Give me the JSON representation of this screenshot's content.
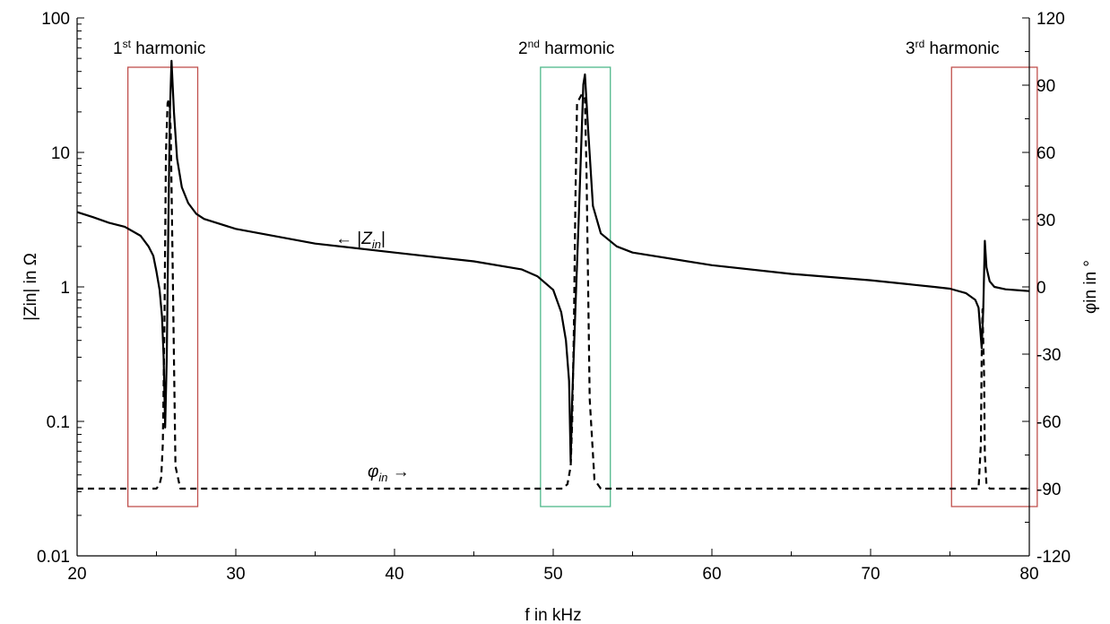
{
  "chart_data": {
    "type": "line",
    "xlabel": "f in kHz",
    "ylabel_left": "|Zin| in Ω",
    "ylabel_right": "φin in °",
    "x_range": [
      20,
      80
    ],
    "y_left_range": [
      0.01,
      100
    ],
    "y_left_scale": "log",
    "y_right_range": [
      -120,
      120
    ],
    "x_ticks": [
      "20",
      "30",
      "40",
      "50",
      "60",
      "70",
      "80"
    ],
    "y_left_ticks": [
      "0.01",
      "0.1",
      "1",
      "10",
      "100"
    ],
    "y_right_ticks": [
      "-120",
      "-90",
      "-60",
      "-30",
      "0",
      "30",
      "60",
      "90",
      "120"
    ],
    "grid": false,
    "series": [
      {
        "name": "|Zin|",
        "axis": "left",
        "style": "solid",
        "color": "#000000",
        "x": [
          20,
          21,
          22,
          23,
          24,
          24.5,
          24.8,
          25.0,
          25.2,
          25.35,
          25.45,
          25.55,
          25.65,
          25.75,
          25.85,
          25.95,
          26.1,
          26.3,
          26.6,
          27.0,
          27.5,
          28,
          30,
          35,
          40,
          45,
          48,
          49,
          50,
          50.5,
          50.8,
          51.0,
          51.1,
          51.2,
          51.4,
          51.6,
          51.75,
          51.9,
          52.0,
          52.2,
          52.5,
          53,
          54,
          55,
          60,
          65,
          70,
          74,
          75,
          76,
          76.6,
          76.8,
          76.9,
          77.0,
          77.1,
          77.2,
          77.3,
          77.5,
          77.8,
          78.5,
          80
        ],
        "y": [
          3.6,
          3.3,
          3.0,
          2.8,
          2.4,
          2.0,
          1.7,
          1.3,
          0.95,
          0.6,
          0.3,
          0.09,
          0.3,
          3,
          20,
          48,
          20,
          9,
          5.5,
          4.2,
          3.5,
          3.2,
          2.7,
          2.1,
          1.8,
          1.55,
          1.35,
          1.2,
          0.95,
          0.65,
          0.4,
          0.2,
          0.05,
          0.15,
          0.7,
          3,
          10,
          32,
          38,
          15,
          4,
          2.5,
          2.0,
          1.8,
          1.45,
          1.25,
          1.12,
          1.0,
          0.97,
          0.9,
          0.8,
          0.7,
          0.5,
          0.35,
          0.7,
          2.2,
          1.4,
          1.1,
          1.0,
          0.96,
          0.93
        ]
      },
      {
        "name": "φin",
        "axis": "right",
        "style": "dashed",
        "color": "#000000",
        "x": [
          20,
          25.0,
          25.2,
          25.3,
          25.4,
          25.5,
          25.6,
          25.7,
          25.8,
          25.9,
          26.0,
          26.2,
          26.5,
          50,
          50.6,
          50.9,
          51.1,
          51.2,
          51.3,
          51.4,
          51.5,
          51.8,
          52.0,
          52.1,
          52.3,
          52.6,
          53,
          76.5,
          76.8,
          76.95,
          77.0,
          77.05,
          77.15,
          77.2,
          77.3,
          77.5,
          80
        ],
        "y": [
          -90,
          -90,
          -88,
          -85,
          -70,
          -20,
          60,
          82,
          84,
          70,
          20,
          -80,
          -90,
          -90,
          -90,
          -88,
          -80,
          -60,
          -20,
          40,
          82,
          86,
          84,
          50,
          -50,
          -86,
          -90,
          -90,
          -90,
          -70,
          -30,
          -10,
          -40,
          -75,
          -88,
          -90,
          -90
        ]
      }
    ],
    "annotations": {
      "h1": {
        "num": "1",
        "sup": "st",
        "word": " harmonic"
      },
      "h2": {
        "num": "2",
        "sup": "nd",
        "word": " harmonic"
      },
      "h3": {
        "num": "3",
        "sup": "rd",
        "word": " harmonic"
      },
      "zin": {
        "arrow": "← |",
        "sym": "Z",
        "sub": "in",
        "tail": "|"
      },
      "phi": {
        "sym": "φ",
        "sub": "in",
        "arrow": " →"
      }
    },
    "highlight_boxes": [
      {
        "name": "harmonic-1-box",
        "x0": 23.2,
        "x1": 27.6,
        "y0": -98,
        "y1": 98,
        "color": "#c0504d"
      },
      {
        "name": "harmonic-2-box",
        "x0": 49.2,
        "x1": 53.6,
        "y0": -98,
        "y1": 98,
        "color": "#4fb88a"
      },
      {
        "name": "harmonic-3-box",
        "x0": 75.1,
        "x1": 80.5,
        "y0": -98,
        "y1": 98,
        "color": "#c0504d"
      }
    ]
  }
}
